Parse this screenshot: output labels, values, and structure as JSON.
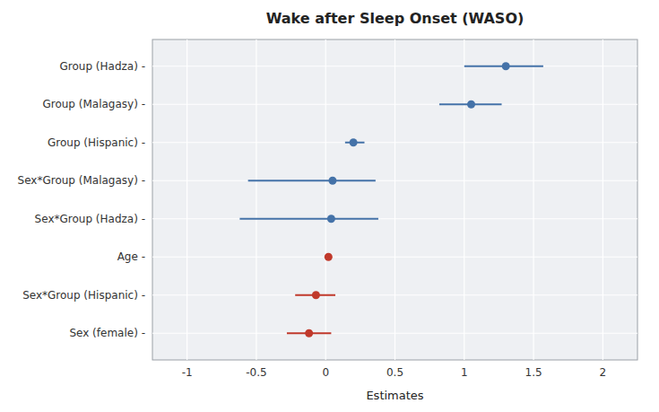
{
  "chart_data": {
    "type": "forest",
    "orientation": "horizontal",
    "title": "Wake after Sleep Onset (WASO)",
    "xlabel": "Estimates",
    "xlim": [
      -1.25,
      2.25
    ],
    "xticks": [
      -1,
      -0.5,
      0,
      0.5,
      1,
      1.5,
      2
    ],
    "grid": true,
    "categories": [
      "Group (Hadza) -",
      "Group (Malagasy) -",
      "Group (Hispanic) -",
      "Sex*Group (Malagasy) -",
      "Sex*Group (Hadza) -",
      "Age -",
      "Sex*Group (Hispanic) -",
      "Sex (female) -"
    ],
    "values": [
      1.3,
      1.05,
      0.2,
      0.05,
      0.04,
      0.02,
      -0.07,
      -0.12
    ],
    "ci_low": [
      1.0,
      0.82,
      0.14,
      -0.56,
      -0.62,
      0.015,
      -0.22,
      -0.28
    ],
    "ci_high": [
      1.57,
      1.27,
      0.28,
      0.36,
      0.38,
      0.025,
      0.07,
      0.04
    ],
    "colors": [
      "#4472a8",
      "#4472a8",
      "#4472a8",
      "#4472a8",
      "#4472a8",
      "#c0392b",
      "#c0392b",
      "#c0392b"
    ]
  }
}
